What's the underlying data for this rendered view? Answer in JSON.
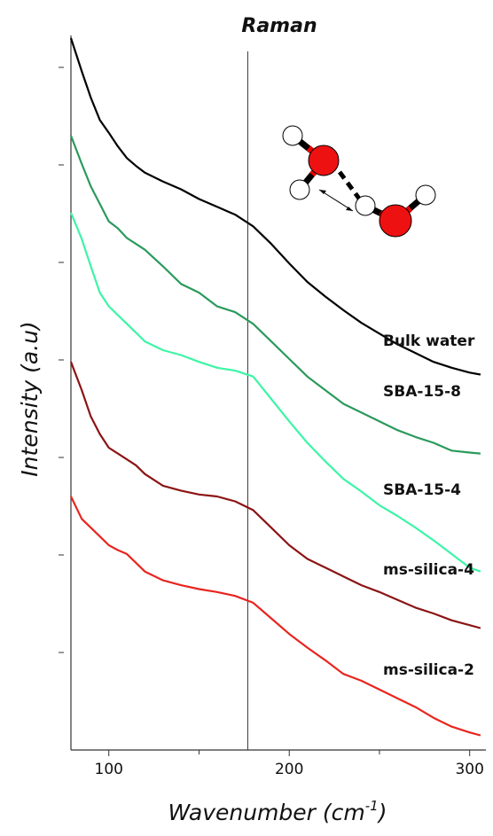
{
  "chart_data": {
    "type": "line",
    "title": "Raman",
    "xlabel": "Wavenumber (cm",
    "xlabel_sup": "-1",
    "xlabel_end": ")",
    "ylabel": "Intensity (a.u)",
    "x": [
      79,
      85,
      90,
      95,
      100,
      105,
      110,
      115,
      120,
      130,
      140,
      150,
      160,
      170,
      180,
      190,
      200,
      210,
      220,
      230,
      240,
      250,
      260,
      270,
      280,
      290,
      300,
      306
    ],
    "series": [
      {
        "name": "Bulk water",
        "color": "#000000",
        "values": [
          7.3,
          6.96,
          6.69,
          6.46,
          6.33,
          6.19,
          6.07,
          5.99,
          5.92,
          5.83,
          5.75,
          5.65,
          5.57,
          5.49,
          5.37,
          5.19,
          4.99,
          4.8,
          4.65,
          4.51,
          4.38,
          4.27,
          4.16,
          4.07,
          3.98,
          3.92,
          3.87,
          3.85
        ]
      },
      {
        "name": "SBA-15-8",
        "color": "#2a9a5c",
        "values": [
          6.3,
          6.01,
          5.78,
          5.6,
          5.42,
          5.35,
          5.25,
          5.19,
          5.13,
          4.96,
          4.78,
          4.69,
          4.55,
          4.49,
          4.37,
          4.19,
          4.01,
          3.83,
          3.69,
          3.55,
          3.46,
          3.37,
          3.28,
          3.21,
          3.15,
          3.07,
          3.05,
          3.04
        ]
      },
      {
        "name": "SBA-15-4",
        "color": "#3df5a6",
        "values": [
          5.51,
          5.24,
          4.96,
          4.69,
          4.55,
          4.46,
          4.37,
          4.28,
          4.19,
          4.1,
          4.05,
          3.98,
          3.92,
          3.89,
          3.83,
          3.6,
          3.37,
          3.15,
          2.96,
          2.78,
          2.65,
          2.51,
          2.4,
          2.28,
          2.15,
          2.01,
          1.87,
          1.83
        ]
      },
      {
        "name": "ms-silica-4",
        "color": "#8b1414",
        "values": [
          3.98,
          3.69,
          3.42,
          3.24,
          3.1,
          3.04,
          2.98,
          2.92,
          2.83,
          2.71,
          2.66,
          2.62,
          2.6,
          2.55,
          2.46,
          2.28,
          2.1,
          1.96,
          1.87,
          1.78,
          1.69,
          1.62,
          1.54,
          1.46,
          1.4,
          1.33,
          1.28,
          1.25
        ]
      },
      {
        "name": "ms-silica-2",
        "color": "#e8251f",
        "values": [
          2.6,
          2.37,
          2.28,
          2.19,
          2.1,
          2.05,
          2.01,
          1.92,
          1.83,
          1.74,
          1.69,
          1.65,
          1.62,
          1.58,
          1.51,
          1.35,
          1.19,
          1.05,
          0.92,
          0.78,
          0.71,
          0.62,
          0.53,
          0.44,
          0.33,
          0.24,
          0.18,
          0.15
        ]
      }
    ],
    "xlim": [
      79,
      309
    ],
    "xticks": [
      100,
      200,
      300
    ],
    "xminor_ticks": [
      150,
      250
    ],
    "ylim": [
      0,
      7.35
    ],
    "yticks": [
      1,
      2,
      3,
      4,
      5,
      6,
      7
    ],
    "reference_line_x": 177
  }
}
